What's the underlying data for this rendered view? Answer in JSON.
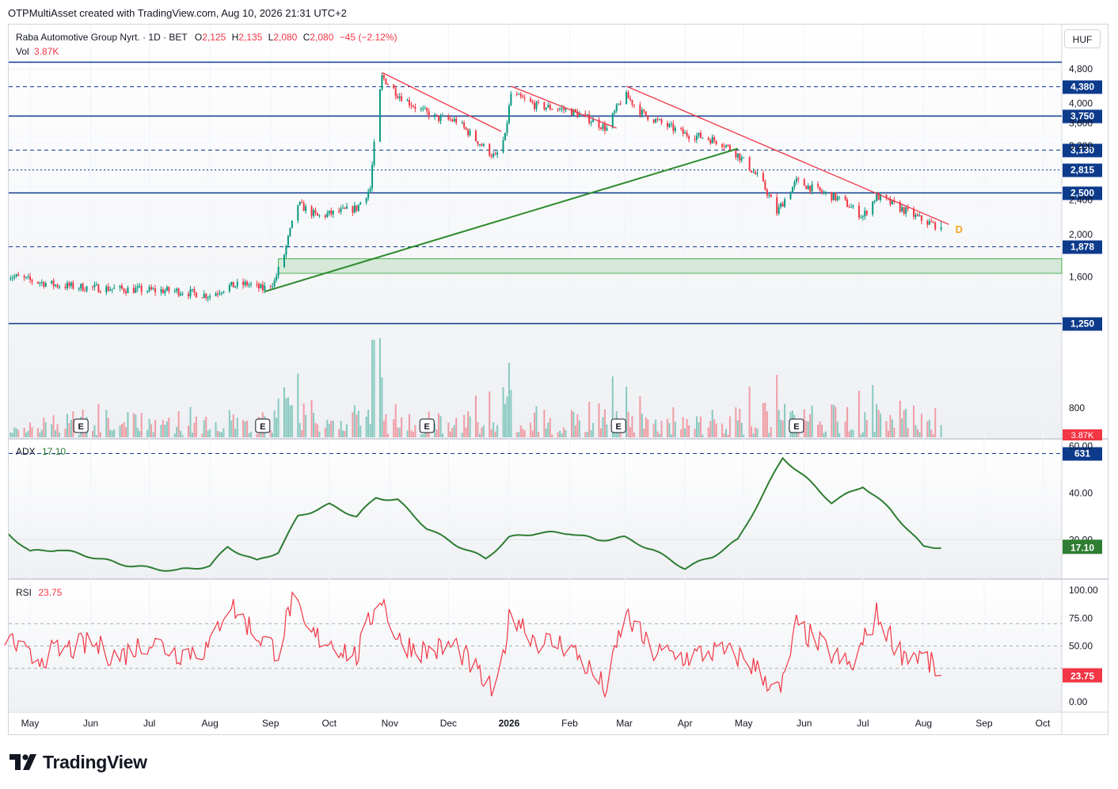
{
  "header": {
    "text": "OTPMultiAsset created with TradingView.com, Aug 10, 2026 21:31 UTC+2"
  },
  "legend": {
    "symbol": "Raba Automotive Group Nyrt. · 1D · BET",
    "o_label": "O",
    "o": "2,125",
    "h_label": "H",
    "h": "2,135",
    "l_label": "L",
    "l": "2,080",
    "c_label": "C",
    "c": "2,080",
    "change": "−45 (−2.12%)",
    "vol_label": "Vol",
    "vol": "3.87K",
    "adx_label": "ADX",
    "adx": "17.10",
    "rsi_label": "RSI",
    "rsi": "23.75"
  },
  "currency": "HUF",
  "brand": "TradingView",
  "colors": {
    "up": "#089981",
    "down": "#f23645",
    "level": "#0d3b8c",
    "trend_up": "#2e8b2e",
    "trend_down": "#f23645",
    "adx": "#2e7d32",
    "rsi": "#f23645"
  },
  "chart_data": [
    {
      "type": "candlestick",
      "title": "Raba Automotive Group Nyrt. · 1D · BET",
      "ylim": [
        700,
        5000
      ],
      "price_axis_ticks": [
        "4,800",
        "4,000",
        "3,600",
        "3,200",
        "2,400",
        "2,000",
        "1,600",
        "800"
      ],
      "time_axis_ticks": [
        "May",
        "Jun",
        "Jul",
        "Aug",
        "Sep",
        "Oct",
        "Nov",
        "Dec",
        "2026",
        "Feb",
        "Mar",
        "Apr",
        "May",
        "Jun",
        "Jul",
        "Aug",
        "Sep",
        "Oct"
      ],
      "last_close": 2080,
      "horizontal_levels": [
        {
          "value": 4980,
          "style": "solid",
          "label": ""
        },
        {
          "value": 4380,
          "style": "dashed",
          "label": "4,380"
        },
        {
          "value": 3750,
          "style": "solid",
          "label": "3,750"
        },
        {
          "value": 3130,
          "style": "dashed",
          "label": "3,130"
        },
        {
          "value": 2815,
          "style": "dotted",
          "label": "2,815"
        },
        {
          "value": 2500,
          "style": "solid",
          "label": "2,500"
        },
        {
          "value": 1878,
          "style": "dashed",
          "label": "1,878"
        },
        {
          "value": 1250,
          "style": "solid",
          "label": "1,250"
        },
        {
          "value": 631,
          "style": "dashed",
          "label": "631"
        }
      ],
      "support_zone": [
        1630,
        1760
      ],
      "trendlines": [
        {
          "color": "green",
          "from": {
            "date": "2025-08-29",
            "price": 1480
          },
          "to": {
            "date": "2026-04-28",
            "price": 3150
          }
        },
        {
          "color": "red",
          "from": {
            "date": "2025-10-28",
            "price": 4710
          },
          "to": {
            "date": "2025-12-28",
            "price": 3450
          }
        },
        {
          "color": "red",
          "from": {
            "date": "2026-01-02",
            "price": 4380
          },
          "to": {
            "date": "2026-02-25",
            "price": 3510
          }
        },
        {
          "color": "red",
          "from": {
            "date": "2026-03-02",
            "price": 4380
          },
          "to": {
            "date": "2026-08-14",
            "price": 2110
          }
        }
      ],
      "marker": {
        "label": "D",
        "date": "2026-08-14",
        "price": 2060
      },
      "earnings_markers": {
        "label": "E",
        "dates": [
          "2025-05-27",
          "2025-08-28",
          "2025-11-20",
          "2026-02-26",
          "2026-05-28"
        ]
      },
      "series": [
        {
          "name": "Close",
          "points": [
            [
              "2025-04-18",
              1620
            ],
            [
              "2025-05-01",
              1570
            ],
            [
              "2025-05-15",
              1530
            ],
            [
              "2025-06-01",
              1510
            ],
            [
              "2025-06-15",
              1500
            ],
            [
              "2025-07-01",
              1490
            ],
            [
              "2025-07-15",
              1485
            ],
            [
              "2025-08-01",
              1450
            ],
            [
              "2025-08-10",
              1520
            ],
            [
              "2025-08-20",
              1540
            ],
            [
              "2025-08-28",
              1500
            ],
            [
              "2025-09-03",
              1560
            ],
            [
              "2025-09-08",
              1800
            ],
            [
              "2025-09-15",
              2350
            ],
            [
              "2025-09-25",
              2200
            ],
            [
              "2025-10-05",
              2250
            ],
            [
              "2025-10-15",
              2300
            ],
            [
              "2025-10-22",
              2550
            ],
            [
              "2025-10-24",
              3200
            ],
            [
              "2025-10-28",
              4600
            ],
            [
              "2025-11-05",
              4200
            ],
            [
              "2025-11-15",
              3900
            ],
            [
              "2025-11-25",
              3700
            ],
            [
              "2025-12-05",
              3650
            ],
            [
              "2025-12-15",
              3300
            ],
            [
              "2025-12-25",
              3000
            ],
            [
              "2025-12-30",
              3350
            ],
            [
              "2026-01-02",
              4200
            ],
            [
              "2026-01-15",
              3950
            ],
            [
              "2026-01-25",
              3900
            ],
            [
              "2026-02-01",
              3850
            ],
            [
              "2026-02-10",
              3700
            ],
            [
              "2026-02-20",
              3500
            ],
            [
              "2026-03-01",
              4200
            ],
            [
              "2026-03-10",
              3800
            ],
            [
              "2026-03-20",
              3600
            ],
            [
              "2026-04-01",
              3400
            ],
            [
              "2026-04-10",
              3350
            ],
            [
              "2026-04-20",
              3250
            ],
            [
              "2026-04-28",
              3050
            ],
            [
              "2026-05-10",
              2650
            ],
            [
              "2026-05-18",
              2250
            ],
            [
              "2026-05-28",
              2650
            ],
            [
              "2026-06-10",
              2500
            ],
            [
              "2026-06-20",
              2400
            ],
            [
              "2026-07-01",
              2200
            ],
            [
              "2026-07-08",
              2450
            ],
            [
              "2026-07-20",
              2300
            ],
            [
              "2026-08-01",
              2150
            ],
            [
              "2026-08-10",
              2080
            ]
          ]
        },
        {
          "name": "Vol",
          "last": "3.87K"
        }
      ]
    },
    {
      "type": "line",
      "title": "ADX",
      "ylim": [
        0,
        60
      ],
      "y_ticks": [
        "60.00",
        "40.00",
        "20.00"
      ],
      "last": 17.1,
      "series": [
        {
          "name": "ADX",
          "points": [
            [
              "2025-04-18",
              24
            ],
            [
              "2025-05-01",
              15
            ],
            [
              "2025-05-15",
              16
            ],
            [
              "2025-06-01",
              13
            ],
            [
              "2025-06-15",
              10
            ],
            [
              "2025-07-01",
              8
            ],
            [
              "2025-07-15",
              7
            ],
            [
              "2025-08-01",
              9
            ],
            [
              "2025-08-10",
              17
            ],
            [
              "2025-08-25",
              11
            ],
            [
              "2025-09-05",
              15
            ],
            [
              "2025-09-15",
              30
            ],
            [
              "2025-10-01",
              35
            ],
            [
              "2025-10-15",
              30
            ],
            [
              "2025-10-25",
              38
            ],
            [
              "2025-11-05",
              37
            ],
            [
              "2025-11-20",
              25
            ],
            [
              "2025-12-05",
              18
            ],
            [
              "2025-12-20",
              12
            ],
            [
              "2026-01-01",
              21
            ],
            [
              "2026-01-15",
              23
            ],
            [
              "2026-02-01",
              23
            ],
            [
              "2026-02-15",
              20
            ],
            [
              "2026-03-01",
              21
            ],
            [
              "2026-03-15",
              16
            ],
            [
              "2026-04-01",
              8
            ],
            [
              "2026-04-15",
              13
            ],
            [
              "2026-04-28",
              20
            ],
            [
              "2026-05-10",
              38
            ],
            [
              "2026-05-21",
              55
            ],
            [
              "2026-06-01",
              47
            ],
            [
              "2026-06-15",
              36
            ],
            [
              "2026-07-01",
              43
            ],
            [
              "2026-07-15",
              33
            ],
            [
              "2026-08-01",
              17
            ],
            [
              "2026-08-10",
              17.1
            ]
          ]
        }
      ]
    },
    {
      "type": "line",
      "title": "RSI",
      "ylim": [
        0,
        100
      ],
      "y_ticks": [
        "100.00",
        "75.00",
        "50.00",
        "0.00"
      ],
      "bands": [
        30,
        50,
        70
      ],
      "last": 23.75,
      "series": [
        {
          "name": "RSI",
          "points": [
            [
              "2025-04-18",
              60
            ],
            [
              "2025-05-01",
              38
            ],
            [
              "2025-05-15",
              45
            ],
            [
              "2025-06-01",
              52
            ],
            [
              "2025-06-15",
              40
            ],
            [
              "2025-07-01",
              55
            ],
            [
              "2025-07-15",
              44
            ],
            [
              "2025-08-01",
              48
            ],
            [
              "2025-08-10",
              90
            ],
            [
              "2025-08-25",
              60
            ],
            [
              "2025-09-05",
              45
            ],
            [
              "2025-09-12",
              92
            ],
            [
              "2025-09-20",
              60
            ],
            [
              "2025-10-01",
              55
            ],
            [
              "2025-10-15",
              40
            ],
            [
              "2025-10-27",
              97
            ],
            [
              "2025-11-05",
              55
            ],
            [
              "2025-11-20",
              45
            ],
            [
              "2025-12-05",
              50
            ],
            [
              "2025-12-25",
              5
            ],
            [
              "2026-01-02",
              82
            ],
            [
              "2026-01-15",
              55
            ],
            [
              "2026-02-01",
              50
            ],
            [
              "2026-02-20",
              10
            ],
            [
              "2026-03-01",
              80
            ],
            [
              "2026-03-15",
              45
            ],
            [
              "2026-04-01",
              40
            ],
            [
              "2026-04-15",
              45
            ],
            [
              "2026-05-01",
              40
            ],
            [
              "2026-05-20",
              8
            ],
            [
              "2026-05-28",
              68
            ],
            [
              "2026-06-10",
              50
            ],
            [
              "2026-06-25",
              30
            ],
            [
              "2026-07-08",
              78
            ],
            [
              "2026-07-20",
              45
            ],
            [
              "2026-08-01",
              40
            ],
            [
              "2026-08-10",
              23.75
            ]
          ]
        }
      ]
    }
  ]
}
